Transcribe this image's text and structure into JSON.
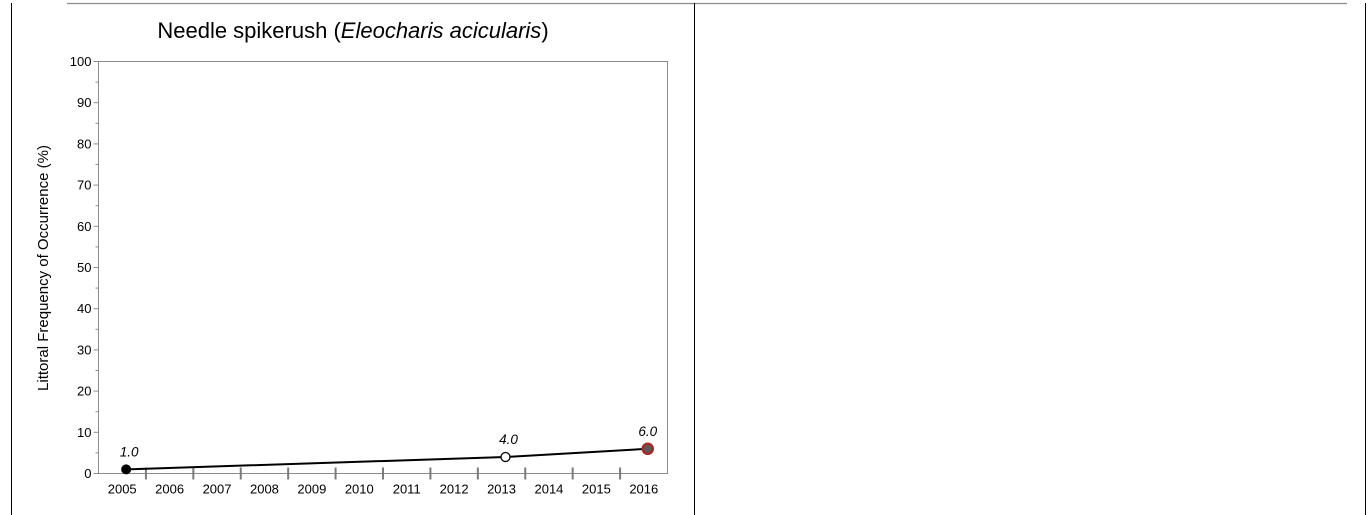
{
  "chart_data": {
    "type": "line",
    "title": "Needle spikerush (",
    "title_species": "Eleocharis acicularis",
    "title_suffix": ")",
    "ylabel": "Littoral Frequency of Occurrence (%)",
    "xlabel": "",
    "x_ticks": [
      "2005",
      "2006",
      "2007",
      "2008",
      "2009",
      "2010",
      "2011",
      "2012",
      "2013",
      "2014",
      "2015",
      "2016"
    ],
    "y_ticks": [
      0,
      10,
      20,
      30,
      40,
      50,
      60,
      70,
      80,
      90,
      100
    ],
    "ylim": [
      0,
      100
    ],
    "grid": false,
    "legend": "none",
    "series": [
      {
        "points": [
          {
            "x": "2005-08",
            "y": 1.0,
            "label": "1.0",
            "marker": "filled-black"
          },
          {
            "x": "2013-08",
            "y": 4.0,
            "label": "4.0",
            "marker": "open-white"
          },
          {
            "x": "2016-08",
            "y": 6.0,
            "label": "6.0",
            "marker": "red-ring"
          }
        ]
      }
    ],
    "colors": {
      "line": "#000000",
      "frame": "#8c8c8c",
      "marker_ring": "#a52a2a",
      "marker_fill": "#5a5a5a"
    }
  }
}
